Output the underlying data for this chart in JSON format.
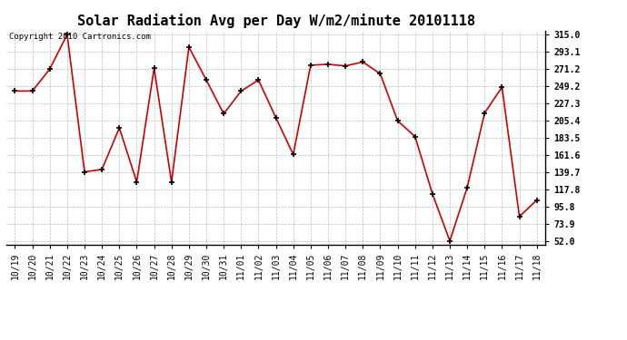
{
  "title": "Solar Radiation Avg per Day W/m2/minute 20101118",
  "copyright_text": "Copyright 2010 Cartronics.com",
  "labels": [
    "10/19",
    "10/20",
    "10/21",
    "10/22",
    "10/23",
    "10/24",
    "10/25",
    "10/26",
    "10/27",
    "10/28",
    "10/29",
    "10/30",
    "10/31",
    "11/01",
    "11/02",
    "11/03",
    "11/04",
    "11/05",
    "11/06",
    "11/07",
    "11/08",
    "11/09",
    "11/10",
    "11/11",
    "11/12",
    "11/13",
    "11/14",
    "11/15",
    "11/16",
    "11/17",
    "11/18"
  ],
  "values": [
    243,
    243,
    271,
    315,
    140,
    143,
    196,
    127,
    272,
    127,
    299,
    257,
    214,
    243,
    257,
    209,
    162,
    276,
    277,
    275,
    280,
    265,
    205,
    185,
    112,
    52,
    120,
    215,
    248,
    83,
    104
  ],
  "line_color": "#cc0000",
  "marker_color": "#000000",
  "bg_color": "#ffffff",
  "grid_color": "#bbbbbb",
  "ymin": 52.0,
  "ymax": 315.0,
  "yticks": [
    52.0,
    73.9,
    95.8,
    117.8,
    139.7,
    161.6,
    183.5,
    205.4,
    227.3,
    249.2,
    271.2,
    293.1,
    315.0
  ],
  "title_fontsize": 11,
  "tick_fontsize": 7,
  "copyright_fontsize": 6.5
}
